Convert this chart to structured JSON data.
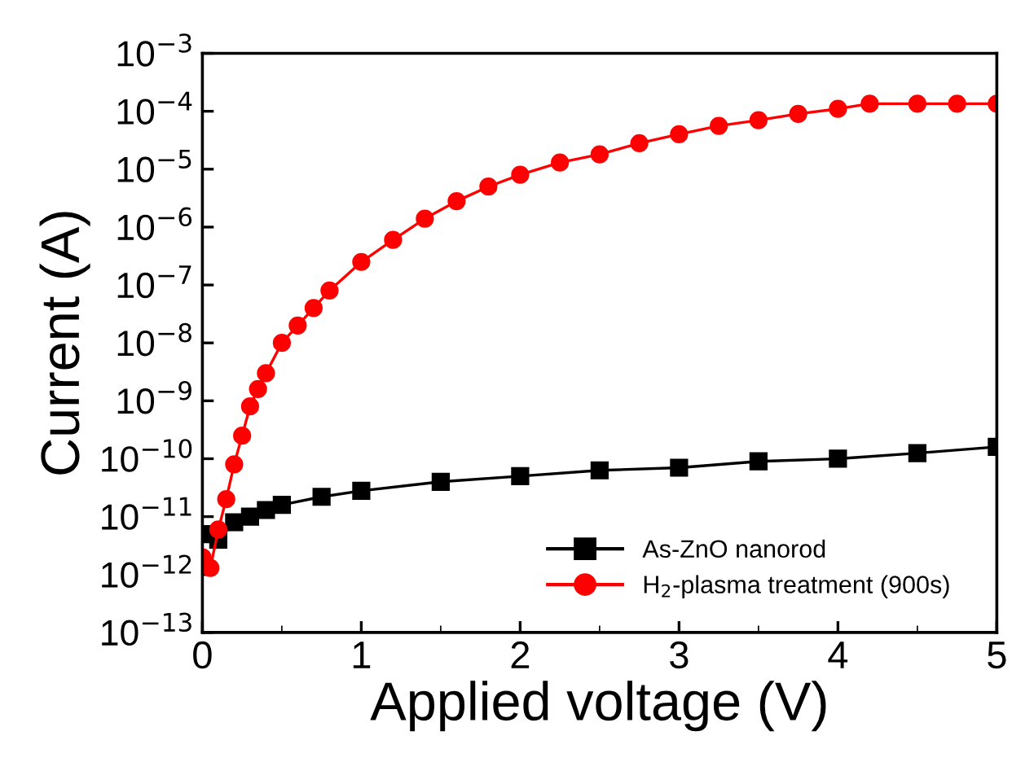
{
  "chart_data": {
    "type": "line",
    "xlabel": "Applied voltage (V)",
    "ylabel": "Current (A)",
    "log": "y",
    "xlim": [
      0,
      5
    ],
    "xticks": [
      0,
      1,
      2,
      3,
      4,
      5
    ],
    "ylim": [
      1e-13,
      0.001
    ],
    "yticks": [
      {
        "value": 1e-13,
        "label": "10$^{−13}$"
      },
      {
        "value": 1e-12,
        "label": "10$^{−12}$"
      },
      {
        "value": 1e-11,
        "label": "10$^{−11}$"
      },
      {
        "value": 1e-10,
        "label": "10$^{−10}$"
      },
      {
        "value": 1e-09,
        "label": "10$^{−9}$"
      },
      {
        "value": 1e-08,
        "label": "10$^{−8}$"
      },
      {
        "value": 1e-07,
        "label": "10$^{−7}$"
      },
      {
        "value": 1e-06,
        "label": "10$^{−6}$"
      },
      {
        "value": 1e-05,
        "label": "10$^{−5}$"
      },
      {
        "value": 0.0001,
        "label": "10$^{−4}$"
      },
      {
        "value": 0.001,
        "label": "10$^{−3}$"
      }
    ],
    "grid": false,
    "legend": "bottom right",
    "line_style": "solid",
    "series": [
      {
        "name": "As-ZnO nanorod",
        "color": "#000000",
        "marker": "square",
        "x": [
          0,
          0.05,
          0.1,
          0.2,
          0.3,
          0.4,
          0.5,
          0.75,
          1,
          1.5,
          2,
          2.5,
          3,
          3.5,
          4,
          4.5,
          5
        ],
        "values": [
          5e-12,
          null,
          4e-12,
          8e-12,
          1e-11,
          1.3e-11,
          1.6e-11,
          2.2e-11,
          2.8e-11,
          4e-11,
          5e-11,
          6.3e-11,
          7e-11,
          9e-11,
          1e-10,
          1.25e-10,
          1.6e-10
        ]
      },
      {
        "name": "H$_{2}$-plasma treatment (900s)",
        "color": "#ff0000",
        "marker": "circle",
        "x": [
          0,
          0.05,
          0.1,
          0.15,
          0.2,
          0.25,
          0.3,
          0.35,
          0.4,
          0.5,
          0.6,
          0.7,
          0.8,
          1.0,
          1.2,
          1.4,
          1.6,
          1.8,
          2.0,
          2.25,
          2.5,
          2.75,
          3.0,
          3.25,
          3.5,
          3.75,
          4.0,
          4.2,
          4.5,
          4.75,
          5.0
        ],
        "values": [
          2e-12,
          1.3e-12,
          6e-12,
          2e-11,
          8e-11,
          2.5e-10,
          8e-10,
          1.6e-09,
          3e-09,
          1e-08,
          2e-08,
          4e-08,
          8e-08,
          2.5e-07,
          6e-07,
          1.4e-06,
          2.8e-06,
          5e-06,
          8e-06,
          1.3e-05,
          1.8e-05,
          2.8e-05,
          4e-05,
          5.6e-05,
          7e-05,
          9e-05,
          0.00011,
          0.000135,
          0.000135,
          0.000135,
          0.000135
        ]
      }
    ]
  }
}
